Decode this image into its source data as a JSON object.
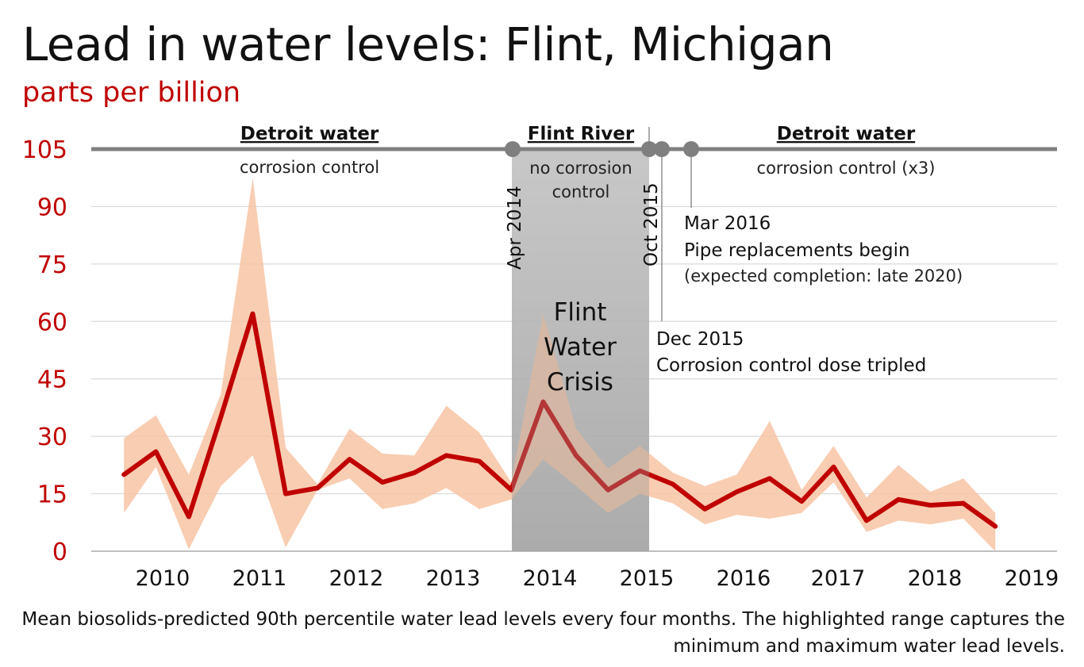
{
  "header": {
    "title": "Lead in water levels: Flint, Michigan",
    "subtitle": "parts per billion"
  },
  "caption": "Mean biosolids-predicted 90th  percentile water lead levels every four months. The highlighted range captures the minimum and maximum water lead levels.",
  "colors": {
    "line": "#c00000",
    "band": "#f8c4a4",
    "crisis_shade": "#a6a6a6",
    "timeline": "#7f7f7f",
    "grid": "#d9d9d9"
  },
  "chart_data": {
    "type": "line",
    "title": "Lead in water levels: Flint, Michigan",
    "ylabel": "parts per billion",
    "xlabel": "",
    "ylim": [
      0,
      105
    ],
    "yticks": [
      0,
      15,
      30,
      45,
      60,
      75,
      90,
      105
    ],
    "xticks": [
      "2010",
      "2011",
      "2012",
      "2013",
      "2014",
      "2015",
      "2016",
      "2017",
      "2018",
      "2019"
    ],
    "grid": true,
    "x": [
      2009.6,
      2009.93,
      2010.27,
      2010.6,
      2010.93,
      2011.27,
      2011.6,
      2011.93,
      2012.27,
      2012.6,
      2012.93,
      2013.27,
      2013.6,
      2013.93,
      2014.27,
      2014.6,
      2014.93,
      2015.27,
      2015.6,
      2015.93,
      2016.27,
      2016.6,
      2016.93,
      2017.27,
      2017.6,
      2017.93,
      2018.27,
      2018.6
    ],
    "series": [
      {
        "values": [
          20,
          26,
          9,
          35,
          62,
          15,
          16.5,
          24,
          18,
          20.5,
          25,
          23.5,
          16,
          39,
          25,
          16,
          21,
          17.5,
          11,
          15.5,
          19,
          13,
          22,
          8,
          13.5,
          12,
          12.5,
          6.5
        ]
      },
      {
        "values": [
          10,
          22,
          0.5,
          17,
          25,
          1,
          16,
          19,
          11,
          12.5,
          16.5,
          11,
          13.5,
          24,
          17,
          10,
          15,
          12.5,
          7,
          9.5,
          8.5,
          10,
          18,
          5,
          8,
          7,
          8.5,
          0
        ]
      },
      {
        "values": [
          29.5,
          35.5,
          20,
          41,
          97.5,
          27,
          17.5,
          32,
          25.5,
          25,
          38,
          31,
          18,
          62,
          32,
          21.5,
          27.5,
          20.5,
          17,
          20,
          34,
          16,
          27.5,
          14,
          22.5,
          15.5,
          19,
          10
        ]
      }
    ],
    "annotations": {
      "segments": [
        {
          "name": "Detroit water",
          "note": "corrosion control"
        },
        {
          "name": "Flint River",
          "note_lines": [
            "no corrosion",
            "control"
          ]
        },
        {
          "name": "Detroit water",
          "note": "corrosion control (x3)"
        }
      ],
      "events": [
        {
          "label": "Apr 2014",
          "x": 2014.27
        },
        {
          "label": "Oct 2015",
          "x": 2015.77
        },
        {
          "label": "Dec 2015",
          "x": 2015.93,
          "note_lines": [
            "Dec 2015",
            "Corrosion control dose tripled"
          ]
        },
        {
          "label": "Mar 2016",
          "x": 2016.2,
          "note_lines": [
            "Mar 2016",
            "Pipe replacements begin",
            "(expected completion: late 2020)"
          ]
        }
      ],
      "crisis_label": [
        "Flint",
        "Water",
        "Crisis"
      ]
    }
  }
}
